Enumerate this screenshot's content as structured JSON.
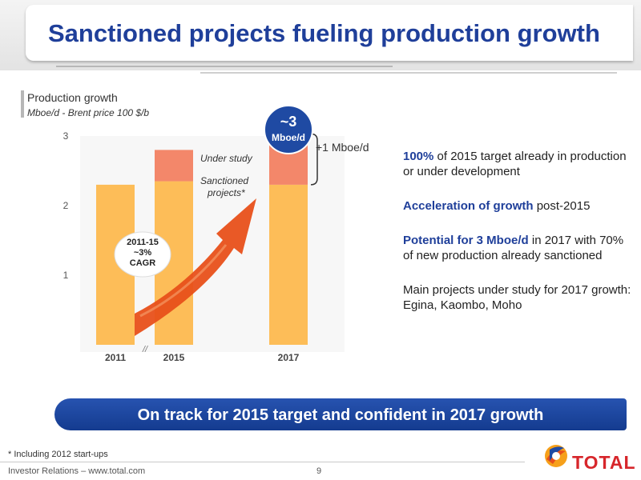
{
  "header": {
    "title": "Sanctioned projects fueling production growth"
  },
  "chart_heading": {
    "title": "Production growth",
    "subtitle": "Mboe/d - Brent price 100 $/b"
  },
  "chart_data": {
    "type": "bar",
    "stacked": true,
    "categories": [
      "2011",
      "2015",
      "2017"
    ],
    "series": [
      {
        "values": [
          2.3,
          2.35,
          2.3
        ]
      },
      {
        "name": "Sanctioned projects*",
        "values": [
          0,
          0.45,
          0.68
        ]
      },
      {
        "name": "Under study",
        "values": [
          0,
          0,
          0.22
        ]
      }
    ],
    "yticks": [
      1,
      2,
      3
    ],
    "ylim": [
      0,
      3.3
    ],
    "series_colors": [
      "#fdbd58",
      "#f3876a",
      "#b8d5eb"
    ],
    "axis_break_label": "//",
    "annotations": {
      "cagr": [
        "2011-15",
        "~3%",
        "CAGR"
      ],
      "total_badge": [
        "~3",
        "Mboe/d"
      ],
      "bracket_label": "+1 Mboe/d"
    }
  },
  "bullets": [
    {
      "strong": "100%",
      "text": " of 2015 target already in production or under development"
    },
    {
      "strong": "Acceleration of growth",
      "text": " post-2015"
    },
    {
      "strong": "Potential for 3 Mboe/d",
      "text": " in 2017 with 70% of new production already sanctioned"
    },
    {
      "strong": "",
      "text": "Main projects under study for 2017 growth: Egina, Kaombo, Moho"
    }
  ],
  "banner": {
    "text": "On track for 2015 target and confident in 2017 growth"
  },
  "footer": {
    "footnote": "* Including 2012 start-ups",
    "left": "Investor Relations – www.total.com",
    "page": "9",
    "logo_text": "TOTAL"
  },
  "colors": {
    "title_blue": "#1f3f9a",
    "banner_blue": "#1f4aa3",
    "arrow_orange": "#e8501a",
    "logo_red": "#d7262b"
  }
}
